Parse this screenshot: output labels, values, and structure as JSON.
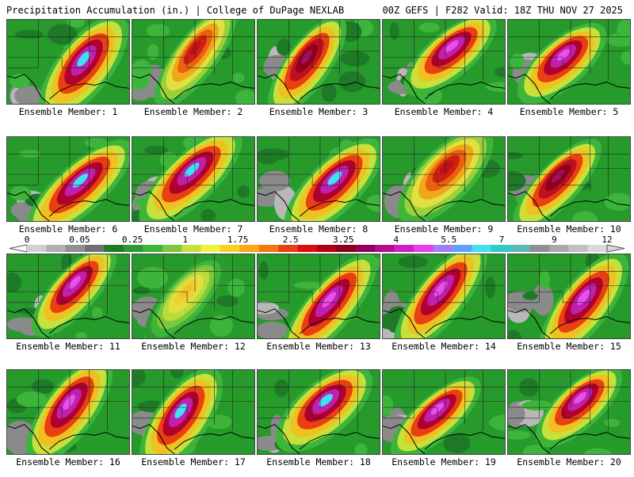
{
  "header": {
    "left": "Precipitation Accumulation (in.) | College of DuPage NEXLAB",
    "right": "00Z GEFS | F282 Valid: 18Z THU NOV 27 2025"
  },
  "members": [
    {
      "label": "Ensemble Member: 1",
      "peak": "cyan"
    },
    {
      "label": "Ensemble Member: 2",
      "peak": "red"
    },
    {
      "label": "Ensemble Member: 3",
      "peak": "maroon"
    },
    {
      "label": "Ensemble Member: 4",
      "peak": "magenta"
    },
    {
      "label": "Ensemble Member: 5",
      "peak": "magenta"
    },
    {
      "label": "Ensemble Member: 6",
      "peak": "cyan"
    },
    {
      "label": "Ensemble Member: 7",
      "peak": "cyan"
    },
    {
      "label": "Ensemble Member: 8",
      "peak": "cyan"
    },
    {
      "label": "Ensemble Member: 9",
      "peak": "red"
    },
    {
      "label": "Ensemble Member: 10",
      "peak": "maroon"
    },
    {
      "label": "Ensemble Member: 11",
      "peak": "magenta"
    },
    {
      "label": "Ensemble Member: 12",
      "peak": "yellow"
    },
    {
      "label": "Ensemble Member: 13",
      "peak": "magenta"
    },
    {
      "label": "Ensemble Member: 14",
      "peak": "magenta"
    },
    {
      "label": "Ensemble Member: 15",
      "peak": "magenta"
    },
    {
      "label": "Ensemble Member: 16",
      "peak": "magenta"
    },
    {
      "label": "Ensemble Member: 17",
      "peak": "cyan"
    },
    {
      "label": "Ensemble Member: 18",
      "peak": "cyan"
    },
    {
      "label": "Ensemble Member: 19",
      "peak": "magenta"
    },
    {
      "label": "Ensemble Member: 20",
      "peak": "magenta"
    }
  ],
  "colorbar": {
    "ticks": [
      "0",
      "0.05",
      "0.25",
      "1",
      "1.75",
      "2.5",
      "3.25",
      "4",
      "5.5",
      "7",
      "9",
      "12"
    ],
    "colors": [
      "#d0d0d0",
      "#b0b0b0",
      "#909090",
      "#707070",
      "#1e7a26",
      "#2c9a30",
      "#3db53b",
      "#7cc83c",
      "#c8e03a",
      "#f0f040",
      "#f8d020",
      "#f8a818",
      "#f07810",
      "#e84010",
      "#d81010",
      "#b00010",
      "#880018",
      "#900060",
      "#b01090",
      "#d020c0",
      "#e840e8",
      "#a080f0",
      "#60a0f8",
      "#40e0f0",
      "#30c8c8",
      "#60b8b8",
      "#909090",
      "#a8a8a8",
      "#c0c0c0",
      "#d8d8d8"
    ]
  }
}
